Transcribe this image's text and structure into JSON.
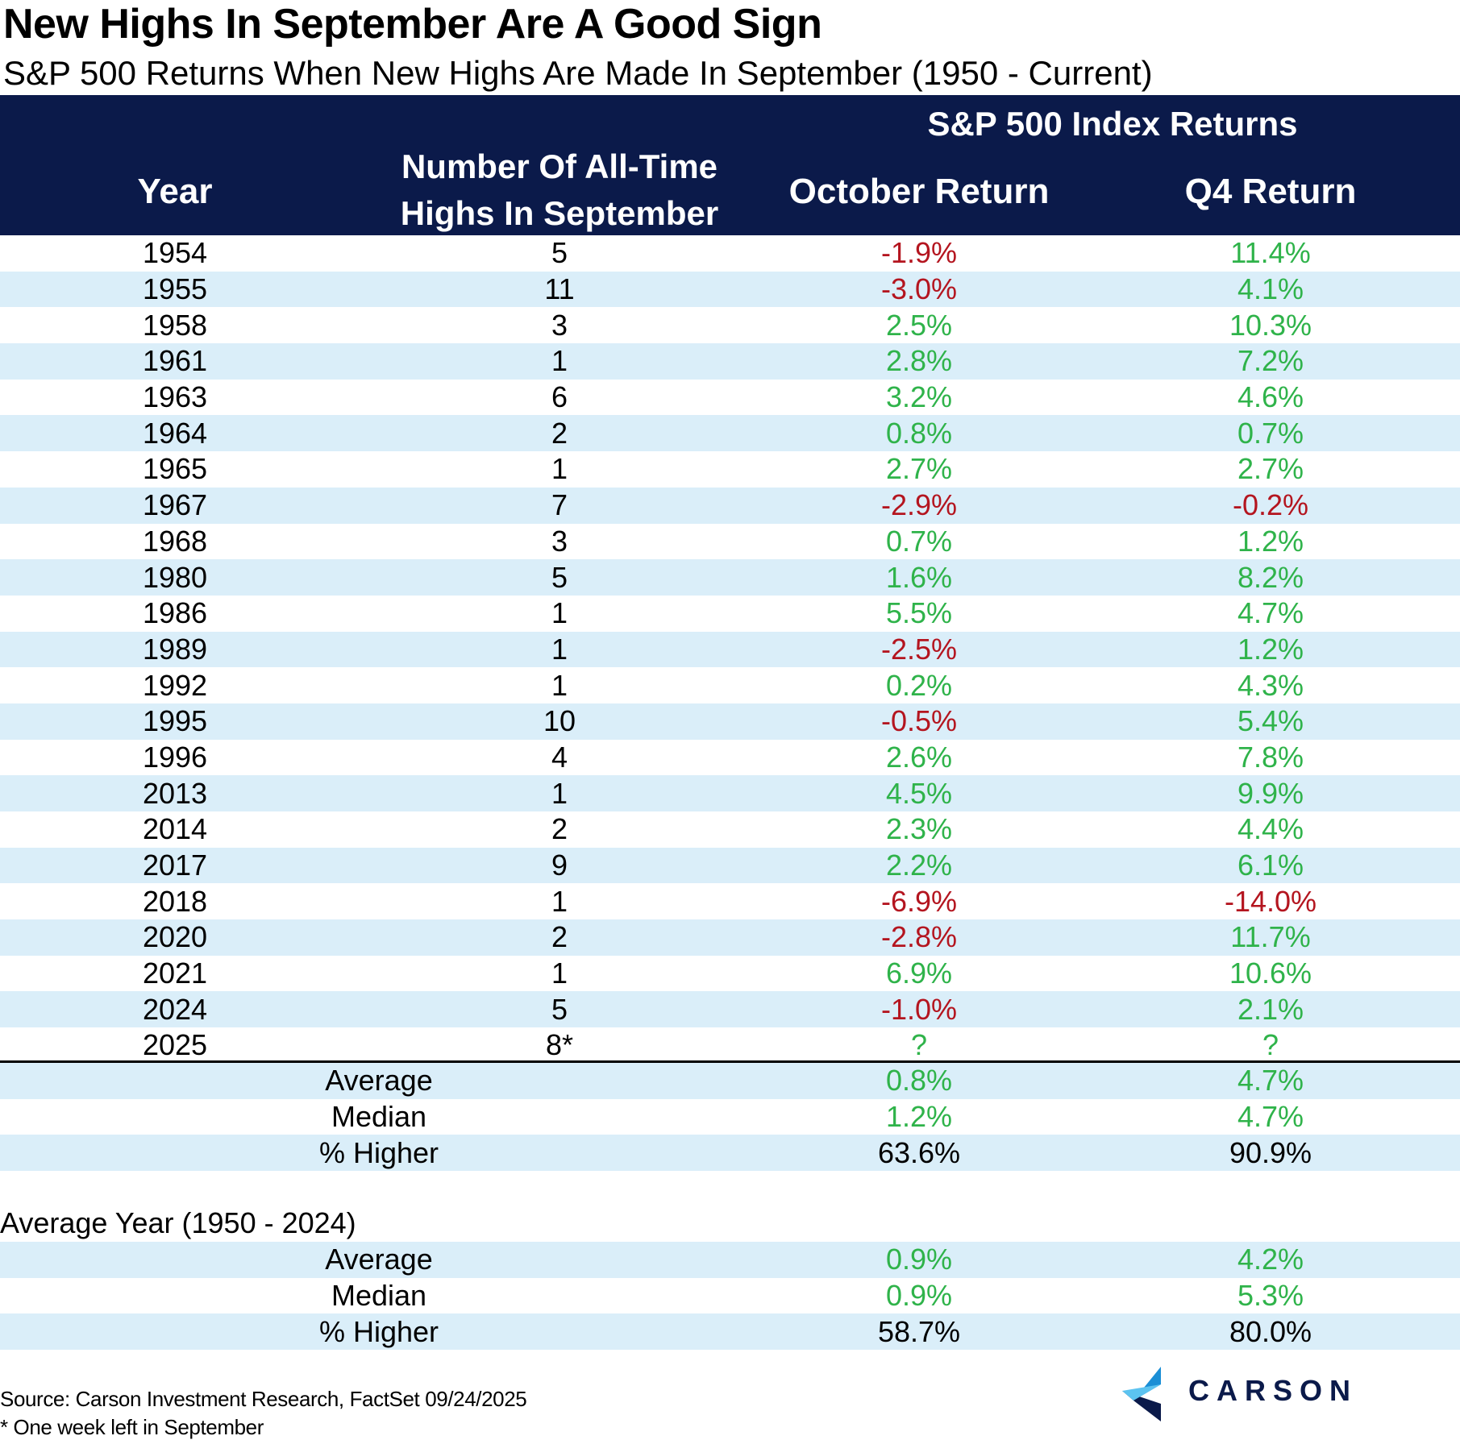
{
  "title": "New Highs In September Are A Good Sign",
  "subtitle": "S&P 500 Returns When New Highs Are Made In September (1950 - Current)",
  "header": {
    "group": "S&P 500 Index Returns",
    "year": "Year",
    "count": "Number Of All-Time Highs In September",
    "october": "October Return",
    "q4": "Q4 Return"
  },
  "chart_data": {
    "type": "table",
    "title": "New Highs In September Are A Good Sign",
    "subtitle": "S&P 500 Returns When New Highs Are Made In September (1950 - Current)",
    "columns": [
      "Year",
      "Number Of All-Time Highs In September",
      "October Return",
      "Q4 Return"
    ],
    "rows": [
      [
        "1954",
        "5",
        "-1.9%",
        "11.4%"
      ],
      [
        "1955",
        "11",
        "-3.0%",
        "4.1%"
      ],
      [
        "1958",
        "3",
        "2.5%",
        "10.3%"
      ],
      [
        "1961",
        "1",
        "2.8%",
        "7.2%"
      ],
      [
        "1963",
        "6",
        "3.2%",
        "4.6%"
      ],
      [
        "1964",
        "2",
        "0.8%",
        "0.7%"
      ],
      [
        "1965",
        "1",
        "2.7%",
        "2.7%"
      ],
      [
        "1967",
        "7",
        "-2.9%",
        "-0.2%"
      ],
      [
        "1968",
        "3",
        "0.7%",
        "1.2%"
      ],
      [
        "1980",
        "5",
        "1.6%",
        "8.2%"
      ],
      [
        "1986",
        "1",
        "5.5%",
        "4.7%"
      ],
      [
        "1989",
        "1",
        "-2.5%",
        "1.2%"
      ],
      [
        "1992",
        "1",
        "0.2%",
        "4.3%"
      ],
      [
        "1995",
        "10",
        "-0.5%",
        "5.4%"
      ],
      [
        "1996",
        "4",
        "2.6%",
        "7.8%"
      ],
      [
        "2013",
        "1",
        "4.5%",
        "9.9%"
      ],
      [
        "2014",
        "2",
        "2.3%",
        "4.4%"
      ],
      [
        "2017",
        "9",
        "2.2%",
        "6.1%"
      ],
      [
        "2018",
        "1",
        "-6.9%",
        "-14.0%"
      ],
      [
        "2020",
        "2",
        "-2.8%",
        "11.7%"
      ],
      [
        "2021",
        "1",
        "6.9%",
        "10.6%"
      ],
      [
        "2024",
        "5",
        "-1.0%",
        "2.1%"
      ],
      [
        "2025",
        "8*",
        "?",
        "?"
      ]
    ],
    "summary": [
      {
        "label": "Average",
        "october": "0.8%",
        "q4": "4.7%"
      },
      {
        "label": "Median",
        "october": "1.2%",
        "q4": "4.7%"
      },
      {
        "label": "% Higher",
        "october": "63.6%",
        "q4": "90.9%"
      }
    ],
    "average_year_label": "Average Year (1950 - 2024)",
    "average_year": [
      {
        "label": "Average",
        "october": "0.9%",
        "q4": "4.2%"
      },
      {
        "label": "Median",
        "october": "0.9%",
        "q4": "5.3%"
      },
      {
        "label": "% Higher",
        "october": "58.7%",
        "q4": "80.0%"
      }
    ]
  },
  "colors": {
    "header_bg": "#0b1a4a",
    "shade": "#daeef9",
    "positive": "#2fb34a",
    "negative": "#b4151f"
  },
  "source": "Source: Carson Investment Research, FactSet 09/24/2025",
  "footnote": "* One week left in September",
  "logo": {
    "text": "CARSON",
    "icon": "carson-logo-icon"
  }
}
